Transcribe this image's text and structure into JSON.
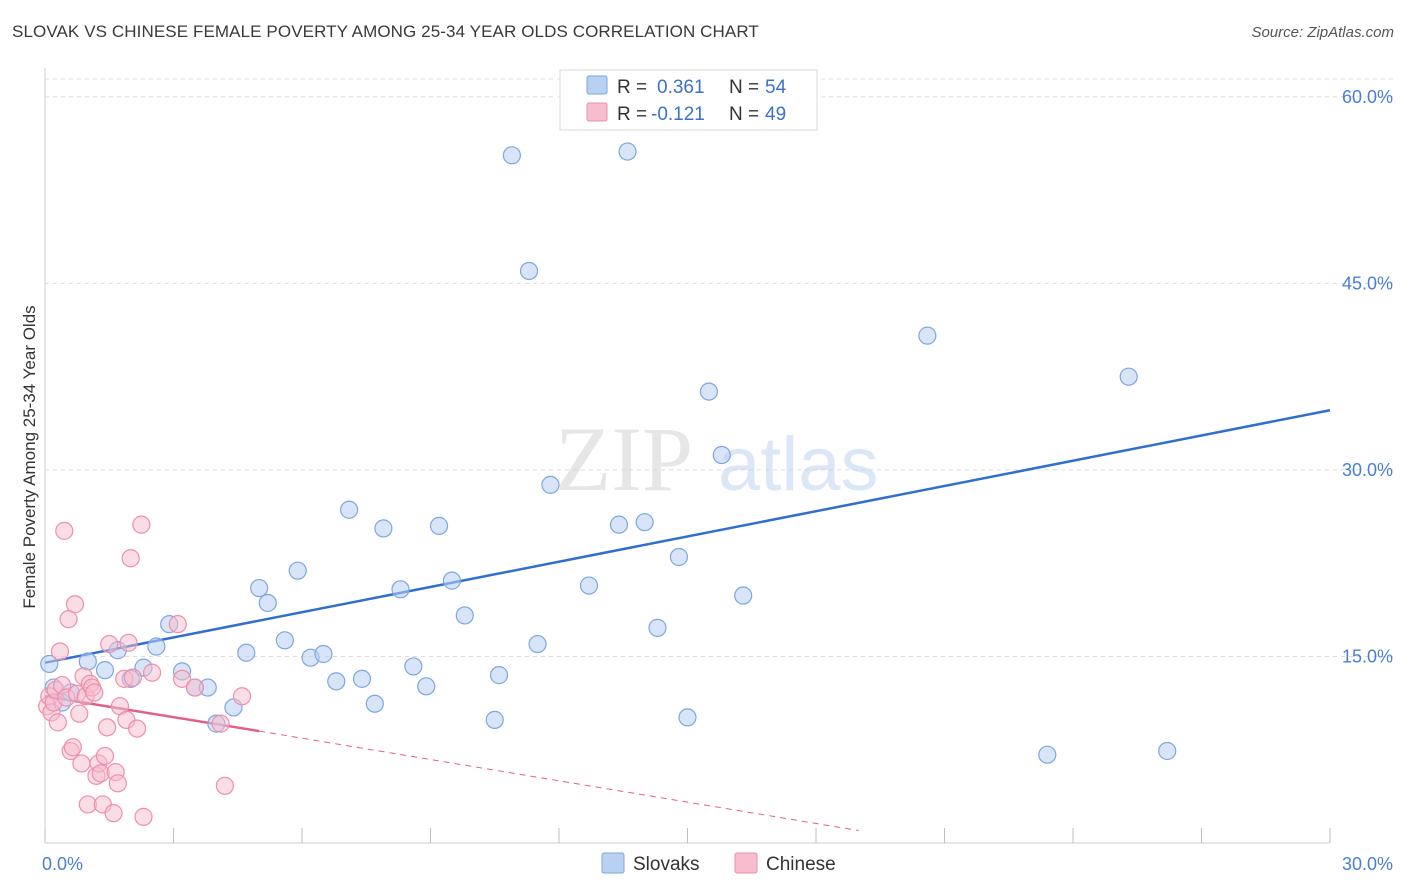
{
  "title": "SLOVAK VS CHINESE FEMALE POVERTY AMONG 25-34 YEAR OLDS CORRELATION CHART",
  "source": "Source: ZipAtlas.com",
  "watermark": {
    "zip": "ZIP",
    "atlas": "atlas"
  },
  "colors": {
    "slovak_fill": "#b8d0f2",
    "slovak_stroke": "#7ea6e0",
    "slovak_line": "#2f6fd0",
    "chinese_fill": "#f7bccd",
    "chinese_stroke": "#ee8fab",
    "chinese_line": "#e0608a",
    "grid": "#dcdcdc",
    "axis_text": "#4a7fd0"
  },
  "legend": {
    "rows": [
      {
        "r_label": "R =",
        "r_value": "0.361",
        "n_label": "N =",
        "n_value": "54"
      },
      {
        "r_label": "R =",
        "r_value": "-0.121",
        "n_label": "N =",
        "n_value": "49"
      }
    ]
  },
  "bottom_legend": {
    "slovaks": "Slovaks",
    "chinese": "Chinese"
  },
  "chart_data": {
    "type": "scatter",
    "title": "SLOVAK VS CHINESE FEMALE POVERTY AMONG 25-34 YEAR OLDS CORRELATION CHART",
    "xlabel": "",
    "ylabel": "Female Poverty Among 25-34 Year Olds",
    "xlim": [
      0,
      30
    ],
    "ylim": [
      0,
      62
    ],
    "x_tick_labels": [
      {
        "value": 0,
        "label": "0.0%"
      },
      {
        "value": 30,
        "label": "30.0%"
      }
    ],
    "y_tick_labels": [
      {
        "value": 15,
        "label": "15.0%"
      },
      {
        "value": 30,
        "label": "30.0%"
      },
      {
        "value": 45,
        "label": "45.0%"
      },
      {
        "value": 60,
        "label": "60.0%"
      }
    ],
    "series": [
      {
        "name": "Slovaks",
        "r": 0.361,
        "n": 54,
        "trend": {
          "x0": 0,
          "y0": 14.5,
          "x1": 30,
          "y1": 34.8,
          "dashed_to": null
        },
        "points": [
          [
            0.1,
            14.4
          ],
          [
            0.2,
            12.5
          ],
          [
            0.4,
            11.3
          ],
          [
            0.6,
            12.1
          ],
          [
            1.0,
            14.6
          ],
          [
            1.4,
            13.9
          ],
          [
            1.7,
            15.5
          ],
          [
            2.0,
            13.2
          ],
          [
            2.3,
            14.1
          ],
          [
            2.6,
            15.8
          ],
          [
            2.9,
            17.6
          ],
          [
            3.2,
            13.8
          ],
          [
            3.5,
            12.5
          ],
          [
            3.8,
            12.5
          ],
          [
            4.0,
            9.6
          ],
          [
            4.4,
            10.9
          ],
          [
            4.7,
            15.3
          ],
          [
            5.0,
            20.5
          ],
          [
            5.2,
            19.3
          ],
          [
            5.6,
            16.3
          ],
          [
            5.9,
            21.9
          ],
          [
            6.2,
            14.9
          ],
          [
            6.5,
            15.2
          ],
          [
            6.8,
            13.0
          ],
          [
            7.1,
            26.8
          ],
          [
            7.4,
            13.2
          ],
          [
            7.7,
            11.2
          ],
          [
            7.9,
            25.3
          ],
          [
            8.3,
            20.4
          ],
          [
            8.6,
            14.2
          ],
          [
            8.9,
            12.6
          ],
          [
            9.2,
            25.5
          ],
          [
            9.5,
            21.1
          ],
          [
            9.8,
            18.3
          ],
          [
            10.5,
            9.9
          ],
          [
            10.6,
            13.5
          ],
          [
            10.9,
            55.3
          ],
          [
            11.3,
            46.0
          ],
          [
            11.5,
            16.0
          ],
          [
            11.8,
            28.8
          ],
          [
            12.7,
            20.7
          ],
          [
            13.4,
            25.6
          ],
          [
            13.6,
            55.6
          ],
          [
            14.0,
            25.8
          ],
          [
            14.3,
            17.3
          ],
          [
            14.8,
            23.0
          ],
          [
            15.0,
            10.1
          ],
          [
            15.5,
            36.3
          ],
          [
            15.8,
            31.2
          ],
          [
            16.3,
            19.9
          ],
          [
            20.6,
            40.8
          ],
          [
            23.4,
            7.1
          ],
          [
            25.3,
            37.5
          ],
          [
            26.2,
            7.4
          ]
        ]
      },
      {
        "name": "Chinese",
        "r": -0.121,
        "n": 49,
        "trend": {
          "x0": 0,
          "y0": 11.8,
          "x1": 5.0,
          "y1": 9.0,
          "dashed_to": {
            "x": 19.0,
            "y": 1.0
          }
        },
        "points": [
          [
            0.05,
            11.0
          ],
          [
            0.1,
            11.8
          ],
          [
            0.15,
            10.5
          ],
          [
            0.2,
            11.3
          ],
          [
            0.25,
            12.3
          ],
          [
            0.3,
            9.7
          ],
          [
            0.35,
            15.4
          ],
          [
            0.4,
            12.7
          ],
          [
            0.45,
            25.1
          ],
          [
            0.5,
            11.7
          ],
          [
            0.55,
            18.0
          ],
          [
            0.6,
            7.4
          ],
          [
            0.65,
            7.7
          ],
          [
            0.7,
            19.2
          ],
          [
            0.75,
            12.0
          ],
          [
            0.8,
            10.4
          ],
          [
            0.85,
            6.4
          ],
          [
            0.9,
            13.4
          ],
          [
            0.95,
            11.8
          ],
          [
            1.0,
            3.1
          ],
          [
            1.05,
            12.8
          ],
          [
            1.1,
            12.5
          ],
          [
            1.15,
            12.1
          ],
          [
            1.2,
            5.4
          ],
          [
            1.25,
            6.4
          ],
          [
            1.3,
            5.6
          ],
          [
            1.35,
            3.1
          ],
          [
            1.4,
            7.0
          ],
          [
            1.45,
            9.3
          ],
          [
            1.5,
            16.0
          ],
          [
            1.6,
            2.4
          ],
          [
            1.65,
            5.7
          ],
          [
            1.7,
            4.8
          ],
          [
            1.75,
            11.0
          ],
          [
            1.85,
            13.2
          ],
          [
            1.9,
            9.9
          ],
          [
            1.95,
            16.1
          ],
          [
            2.0,
            22.9
          ],
          [
            2.05,
            13.3
          ],
          [
            2.15,
            9.2
          ],
          [
            2.25,
            25.6
          ],
          [
            2.3,
            2.1
          ],
          [
            2.5,
            13.7
          ],
          [
            3.1,
            17.6
          ],
          [
            3.2,
            13.2
          ],
          [
            3.5,
            12.5
          ],
          [
            4.1,
            9.6
          ],
          [
            4.2,
            4.6
          ],
          [
            4.6,
            11.8
          ]
        ]
      }
    ]
  }
}
